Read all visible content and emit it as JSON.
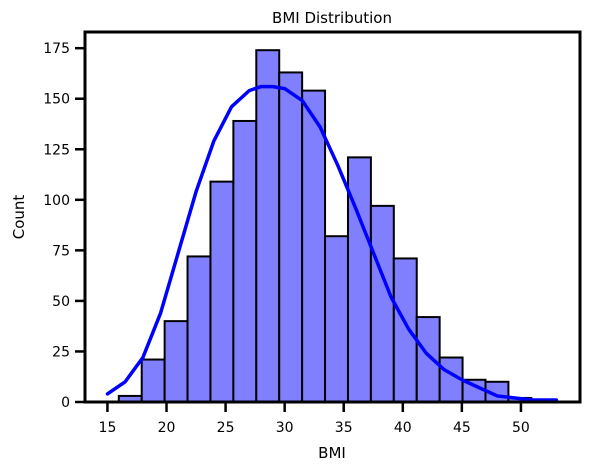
{
  "chart_data": {
    "type": "bar",
    "title": "BMI Distribution",
    "xlabel": "BMI",
    "ylabel": "Count",
    "xlim": [
      13.1,
      55.0
    ],
    "ylim": [
      0,
      183
    ],
    "xticks": [
      15,
      20,
      25,
      30,
      35,
      40,
      45,
      50
    ],
    "yticks": [
      0,
      25,
      50,
      75,
      100,
      125,
      150,
      175
    ],
    "grid": false,
    "legend": "none",
    "bin_edges": [
      15.96,
      17.9,
      19.84,
      21.78,
      23.72,
      25.66,
      27.6,
      29.54,
      31.48,
      33.42,
      35.36,
      37.3,
      39.24,
      41.18,
      43.12,
      45.06,
      47.0,
      48.94,
      50.88,
      52.82
    ],
    "counts": [
      3,
      21,
      40,
      72,
      109,
      139,
      174,
      163,
      154,
      82,
      121,
      97,
      71,
      42,
      22,
      11,
      10,
      2,
      1
    ],
    "kde": {
      "x": [
        15.0,
        16.5,
        18.0,
        19.5,
        21.0,
        22.5,
        24.0,
        25.5,
        27.0,
        28.0,
        29.0,
        30.0,
        31.5,
        33.0,
        34.5,
        36.0,
        37.5,
        39.0,
        40.5,
        42.0,
        43.5,
        45.0,
        46.5,
        48.0,
        49.5,
        51.0,
        53.0
      ],
      "y": [
        4,
        10,
        22,
        44,
        74,
        104,
        129,
        146,
        154,
        156,
        156,
        155,
        149,
        136,
        117,
        96,
        74,
        52,
        36,
        24,
        16,
        11,
        7,
        3,
        2,
        1,
        1
      ]
    },
    "colors": {
      "bar_fill": "#8080ff",
      "bar_edge": "#000000",
      "kde_line": "#0000ff"
    }
  }
}
